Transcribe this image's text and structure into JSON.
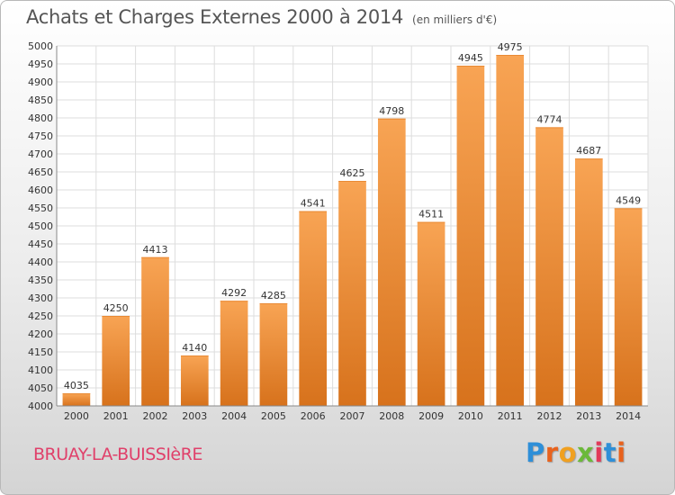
{
  "chart_data": {
    "type": "bar",
    "title": "Achats et Charges Externes 2000 à 2014",
    "unit": "(en milliers d'€)",
    "categories": [
      "2000",
      "2001",
      "2002",
      "2003",
      "2004",
      "2005",
      "2006",
      "2007",
      "2008",
      "2009",
      "2010",
      "2011",
      "2012",
      "2013",
      "2014"
    ],
    "values": [
      4035,
      4250,
      4413,
      4140,
      4292,
      4285,
      4541,
      4625,
      4798,
      4511,
      4945,
      4975,
      4774,
      4687,
      4549
    ],
    "ylim": [
      4000,
      5000
    ],
    "ytick_step": 50,
    "grid": true,
    "colors": {
      "bar_light": "#f8a454",
      "bar_dark": "#d7721c"
    }
  },
  "footer": {
    "town": "BRUAY-LA-BUISSIèRE",
    "brand": "Proxiti",
    "brand_colors": [
      "#2e8fd8",
      "#e8621d",
      "#f0a020",
      "#6bb93a",
      "#e23a5a",
      "#2e8fd8",
      "#e8621d"
    ]
  }
}
